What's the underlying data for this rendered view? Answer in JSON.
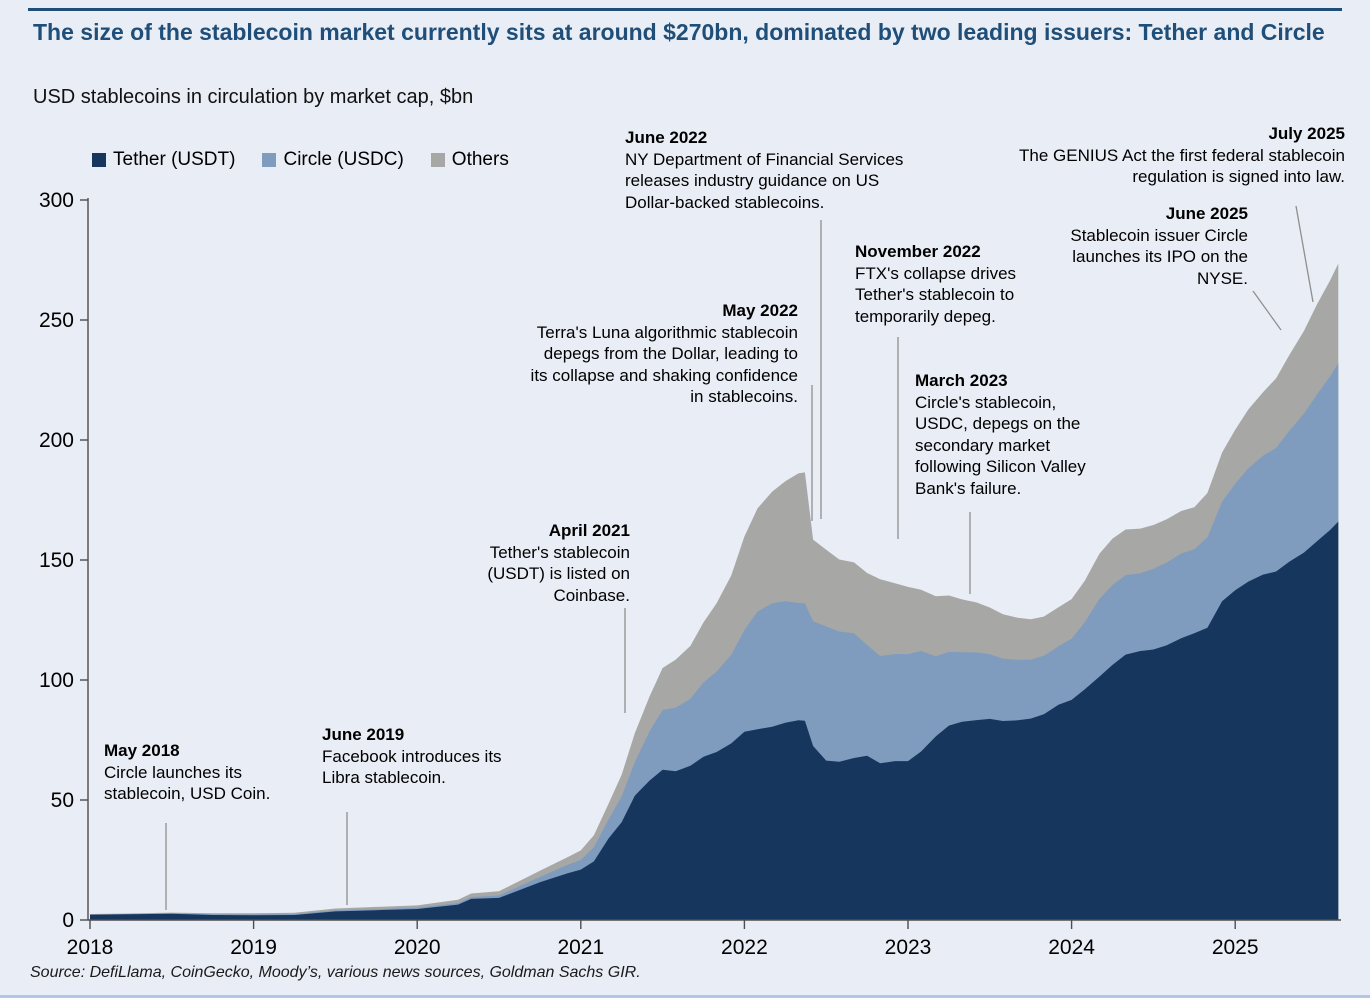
{
  "header": {
    "title": "The size of the stablecoin market currently sits at around $270bn, dominated by two leading issuers: Tether and Circle",
    "subtitle": "USD stablecoins in circulation by market cap, $bn"
  },
  "colors": {
    "accent": "#1f4e79",
    "tether": "#17365d",
    "circle": "#7f9cbf",
    "others": "#a7a7a5",
    "background": "#e9edf5",
    "bottom_border": "#b3c6e3"
  },
  "legend": [
    {
      "label": "Tether (USDT)",
      "color": "#17365d"
    },
    {
      "label": "Circle (USDC)",
      "color": "#7f9cbf"
    },
    {
      "label": "Others",
      "color": "#a7a7a5"
    }
  ],
  "annotations": [
    {
      "date": "May 2018",
      "text": "Circle launches its stablecoin, USD Coin."
    },
    {
      "date": "June 2019",
      "text": "Facebook introduces its Libra stablecoin."
    },
    {
      "date": "April 2021",
      "text": "Tether's stablecoin (USDT) is listed on Coinbase."
    },
    {
      "date": "May 2022",
      "text": "Terra's Luna algorithmic stablecoin depegs from the Dollar, leading to its collapse and shaking confidence in stablecoins."
    },
    {
      "date": "June 2022",
      "text": "NY Department of Financial Services releases industry guidance on US Dollar-backed stablecoins."
    },
    {
      "date": "November 2022",
      "text": "FTX's collapse drives Tether's stablecoin to temporarily depeg."
    },
    {
      "date": "March 2023",
      "text": "Circle's stablecoin, USDC, depegs on the secondary market following Silicon Valley Bank's failure."
    },
    {
      "date": "June 2025",
      "text": "Stablecoin issuer Circle launches its IPO on the NYSE."
    },
    {
      "date": "July 2025",
      "text": "The GENIUS Act the first federal stablecoin regulation is signed into law."
    }
  ],
  "source": "Source: DefiLlama, CoinGecko, Moody’s, various news sources, Goldman Sachs GIR.",
  "chart_data": {
    "type": "area",
    "stacked": true,
    "title": "USD stablecoins in circulation by market cap, $bn",
    "xlabel": "",
    "ylabel": "$bn",
    "grid": false,
    "legend_position": "top-left",
    "xlim": [
      2018,
      2025.68
    ],
    "ylim": [
      0,
      300
    ],
    "x_ticks": [
      2018,
      2019,
      2020,
      2021,
      2022,
      2023,
      2024,
      2025
    ],
    "y_ticks": [
      0,
      50,
      100,
      150,
      200,
      250,
      300
    ],
    "x": [
      2018.0,
      2018.25,
      2018.5,
      2018.75,
      2019.0,
      2019.25,
      2019.5,
      2019.75,
      2020.0,
      2020.25,
      2020.33,
      2020.5,
      2020.75,
      2020.92,
      2021.0,
      2021.08,
      2021.17,
      2021.25,
      2021.33,
      2021.42,
      2021.5,
      2021.58,
      2021.67,
      2021.75,
      2021.83,
      2021.92,
      2022.0,
      2022.08,
      2022.17,
      2022.25,
      2022.33,
      2022.37,
      2022.42,
      2022.5,
      2022.58,
      2022.67,
      2022.75,
      2022.83,
      2022.92,
      2023.0,
      2023.08,
      2023.17,
      2023.25,
      2023.33,
      2023.42,
      2023.5,
      2023.58,
      2023.67,
      2023.75,
      2023.83,
      2023.92,
      2024.0,
      2024.08,
      2024.17,
      2024.25,
      2024.33,
      2024.42,
      2024.5,
      2024.58,
      2024.67,
      2024.75,
      2024.83,
      2024.92,
      2025.0,
      2025.08,
      2025.17,
      2025.25,
      2025.33,
      2025.42,
      2025.5,
      2025.58,
      2025.63
    ],
    "series": [
      {
        "name": "Tether (USDT)",
        "color": "#17365d",
        "values": [
          2.2,
          2.4,
          2.6,
          2.1,
          2.0,
          2.1,
          3.6,
          4.1,
          4.6,
          6.4,
          8.8,
          9.2,
          15.7,
          19.5,
          21.0,
          24.4,
          34.0,
          40.8,
          51.8,
          58.1,
          62.6,
          62.0,
          64.3,
          68.0,
          70.0,
          73.6,
          78.4,
          79.5,
          80.5,
          82.2,
          83.2,
          83.0,
          72.5,
          66.4,
          65.9,
          67.5,
          68.4,
          65.3,
          66.2,
          66.2,
          70.2,
          76.5,
          81.0,
          82.6,
          83.3,
          83.8,
          82.9,
          83.2,
          83.9,
          85.7,
          89.7,
          91.7,
          96.1,
          101.4,
          106.3,
          110.6,
          112.1,
          112.7,
          114.4,
          117.4,
          119.5,
          121.8,
          132.8,
          137.4,
          141.0,
          143.9,
          145.2,
          149.3,
          153.1,
          157.8,
          162.5,
          166.0
        ]
      },
      {
        "name": "Circle (USDC)",
        "color": "#7f9cbf",
        "values": [
          0.0,
          0.0,
          0.1,
          0.25,
          0.3,
          0.35,
          0.4,
          0.45,
          0.5,
          0.7,
          0.75,
          1.0,
          2.2,
          3.5,
          4.0,
          5.9,
          8.0,
          10.8,
          14.0,
          20.5,
          24.9,
          26.5,
          27.9,
          31.0,
          33.5,
          37.0,
          42.4,
          49.0,
          51.5,
          50.6,
          48.9,
          49.0,
          52.0,
          55.9,
          54.3,
          52.0,
          46.2,
          44.7,
          44.6,
          44.6,
          41.9,
          33.4,
          30.7,
          29.0,
          28.2,
          26.9,
          26.0,
          25.2,
          24.6,
          24.4,
          24.4,
          25.5,
          28.0,
          32.4,
          33.3,
          33.1,
          32.4,
          33.6,
          34.5,
          35.3,
          35.0,
          37.6,
          41.5,
          44.4,
          47.2,
          49.5,
          51.5,
          54.5,
          57.8,
          61.2,
          64.0,
          66.0
        ]
      },
      {
        "name": "Others",
        "color": "#a7a7a5",
        "values": [
          0.3,
          0.35,
          0.4,
          0.5,
          0.5,
          0.6,
          0.8,
          0.9,
          1.0,
          1.3,
          1.5,
          1.8,
          2.6,
          3.2,
          4.0,
          5.0,
          6.5,
          9.0,
          12.0,
          14.5,
          17.5,
          20.0,
          22.0,
          25.0,
          28.5,
          33.0,
          39.0,
          43.0,
          46.5,
          50.0,
          54.0,
          54.5,
          34.0,
          32.0,
          30.0,
          29.5,
          30.0,
          32.0,
          29.5,
          28.0,
          25.5,
          25.0,
          23.5,
          22.0,
          20.8,
          19.5,
          18.5,
          17.5,
          16.8,
          16.3,
          16.2,
          16.5,
          17.2,
          18.8,
          19.3,
          19.0,
          18.6,
          18.3,
          18.0,
          17.7,
          17.5,
          18.5,
          20.5,
          22.5,
          24.5,
          26.5,
          29.0,
          31.5,
          34.5,
          37.5,
          40.0,
          41.5
        ]
      }
    ]
  }
}
